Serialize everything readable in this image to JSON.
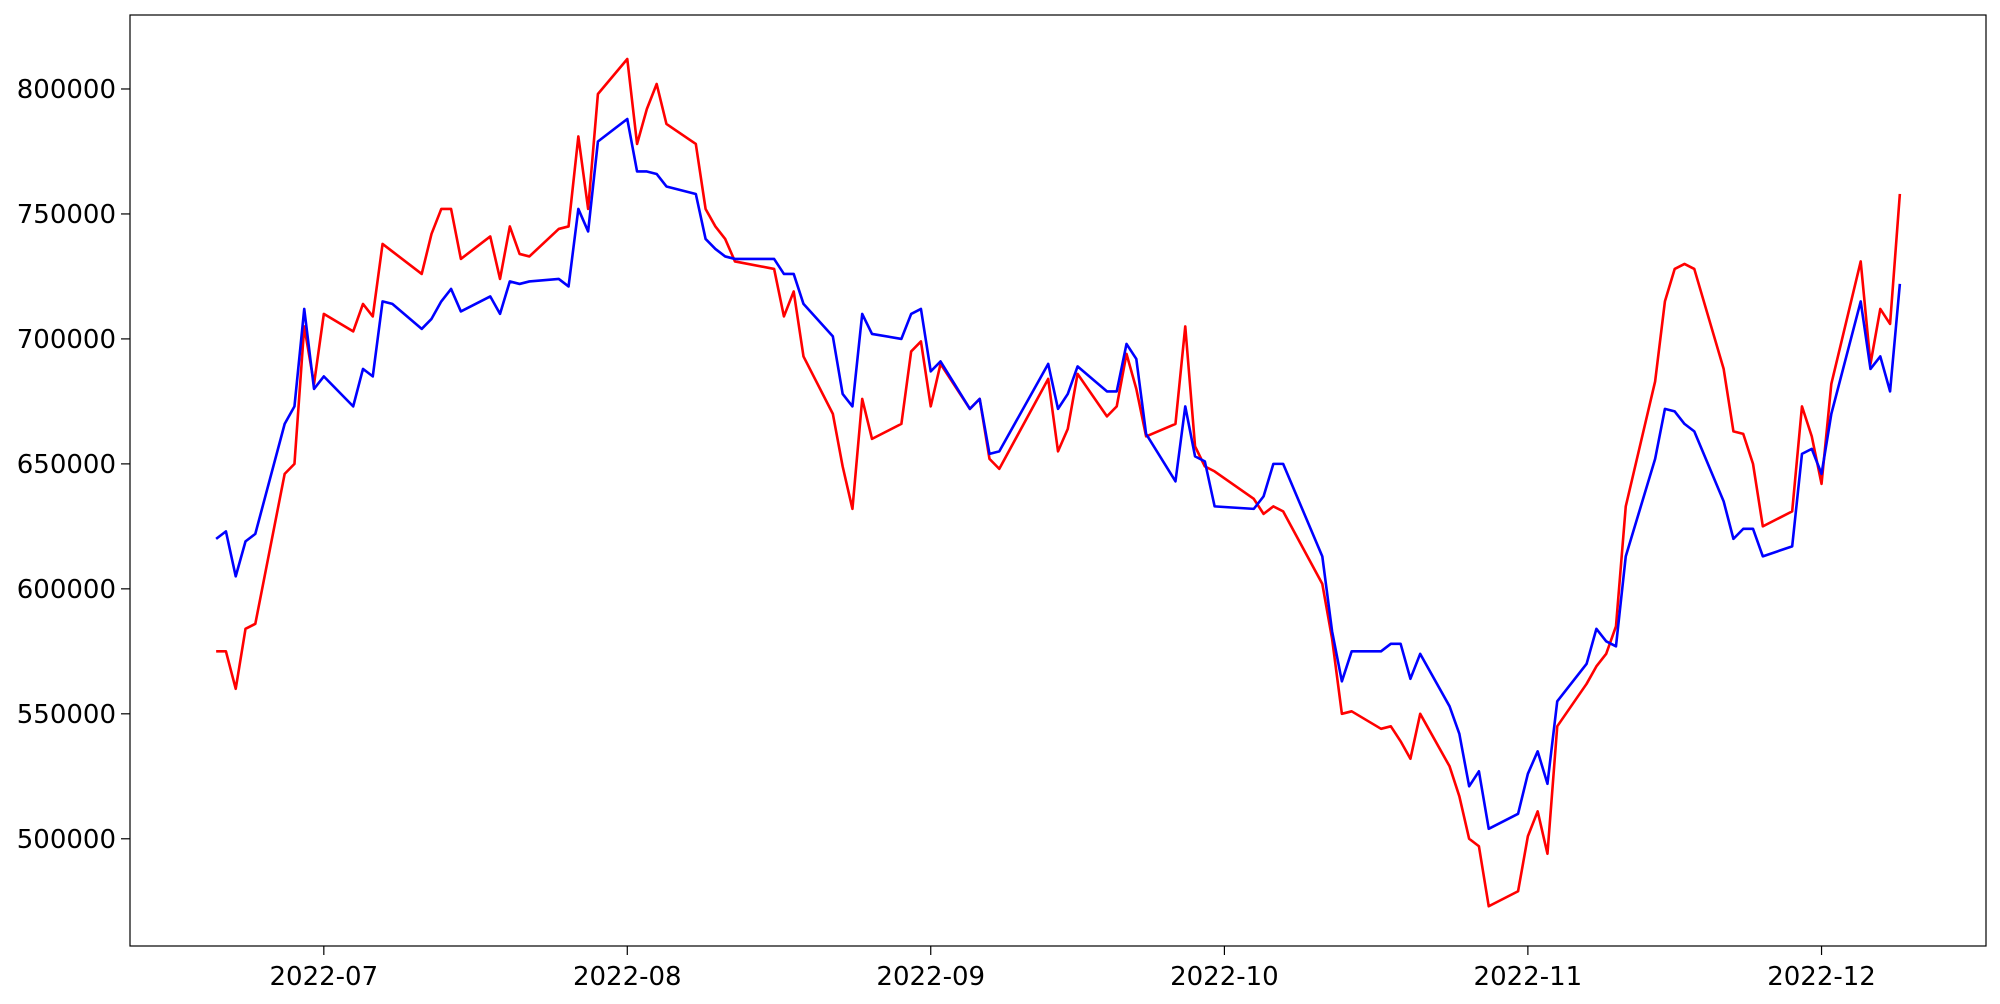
{
  "chart_data": {
    "type": "line",
    "x": [
      -11,
      -10,
      -9,
      -8,
      -7,
      -4,
      -3,
      -2,
      -1,
      0,
      3,
      4,
      5,
      6,
      7,
      10,
      11,
      12,
      13,
      14,
      17,
      18,
      19,
      20,
      21,
      24,
      25,
      26,
      27,
      28,
      31,
      32,
      33,
      34,
      35,
      38,
      39,
      40,
      41,
      42,
      46,
      47,
      48,
      49,
      52,
      53,
      54,
      55,
      56,
      59,
      60,
      61,
      62,
      63,
      66,
      67,
      68,
      69,
      74,
      75,
      76,
      77,
      80,
      81,
      82,
      83,
      84,
      87,
      88,
      89,
      90,
      91,
      95,
      96,
      97,
      98,
      102,
      103,
      104,
      105,
      108,
      109,
      110,
      111,
      112,
      115,
      116,
      117,
      118,
      119,
      122,
      123,
      124,
      125,
      126,
      129,
      130,
      131,
      132,
      133,
      136,
      137,
      138,
      139,
      140,
      143,
      144,
      145,
      146,
      147,
      150,
      151,
      152,
      153,
      154,
      157,
      158,
      159,
      160,
      161
    ],
    "series": [
      {
        "color": "#ff0000",
        "values": [
          575000,
          575000,
          560000,
          584000,
          586000,
          646000,
          650000,
          705000,
          682000,
          710000,
          703000,
          714000,
          709000,
          738000,
          735000,
          726000,
          742000,
          752000,
          752000,
          732000,
          741000,
          724000,
          745000,
          734000,
          733000,
          744000,
          745000,
          781000,
          752000,
          798000,
          812000,
          778000,
          792000,
          802000,
          786000,
          778000,
          752000,
          745000,
          740000,
          731000,
          728000,
          709000,
          719000,
          693000,
          670000,
          649000,
          632000,
          676000,
          660000,
          666000,
          695000,
          699000,
          673000,
          690000,
          672000,
          676000,
          652000,
          648000,
          684000,
          655000,
          664000,
          686000,
          669000,
          673000,
          694000,
          680000,
          661000,
          666000,
          705000,
          657000,
          649000,
          647000,
          636000,
          630000,
          633000,
          631000,
          602000,
          580000,
          550000,
          551000,
          544000,
          545000,
          539000,
          532000,
          550000,
          529000,
          517000,
          500000,
          497000,
          473000,
          479000,
          501000,
          511000,
          494000,
          545000,
          562000,
          569000,
          574000,
          585000,
          633000,
          683000,
          715000,
          728000,
          730000,
          728000,
          688000,
          663000,
          662000,
          650000,
          625000,
          631000,
          673000,
          661000,
          642000,
          682000,
          731000,
          690000,
          712000,
          706000,
          758000
        ]
      },
      {
        "color": "#0000ff",
        "values": [
          620000,
          623000,
          605000,
          619000,
          622000,
          666000,
          673000,
          712000,
          680000,
          685000,
          673000,
          688000,
          685000,
          715000,
          714000,
          704000,
          708000,
          715000,
          720000,
          711000,
          717000,
          710000,
          723000,
          722000,
          723000,
          724000,
          721000,
          752000,
          743000,
          779000,
          788000,
          767000,
          767000,
          766000,
          761000,
          758000,
          740000,
          736000,
          733000,
          732000,
          732000,
          726000,
          726000,
          714000,
          701000,
          678000,
          673000,
          710000,
          702000,
          700000,
          710000,
          712000,
          687000,
          691000,
          672000,
          676000,
          654000,
          655000,
          690000,
          672000,
          678000,
          689000,
          679000,
          679000,
          698000,
          692000,
          662000,
          643000,
          673000,
          653000,
          651000,
          633000,
          632000,
          637000,
          650000,
          650000,
          613000,
          583000,
          563000,
          575000,
          575000,
          578000,
          578000,
          564000,
          574000,
          553000,
          542000,
          521000,
          527000,
          504000,
          510000,
          526000,
          535000,
          522000,
          555000,
          570000,
          584000,
          579000,
          577000,
          613000,
          652000,
          672000,
          671000,
          666000,
          663000,
          635000,
          620000,
          624000,
          624000,
          613000,
          617000,
          654000,
          656000,
          646000,
          670000,
          715000,
          688000,
          693000,
          679000,
          722000
        ]
      }
    ],
    "xlim": [
      -19.8,
      169.8
    ],
    "xticks": [
      {
        "value": 0,
        "label": "2022-07"
      },
      {
        "value": 31,
        "label": "2022-08"
      },
      {
        "value": 62,
        "label": "2022-09"
      },
      {
        "value": 92,
        "label": "2022-10"
      },
      {
        "value": 123,
        "label": "2022-11"
      },
      {
        "value": 153,
        "label": "2022-12"
      }
    ],
    "ylim": [
      457100,
      829600
    ],
    "yticks": [
      500000,
      550000,
      600000,
      650000,
      700000,
      750000,
      800000
    ],
    "grid": false
  }
}
